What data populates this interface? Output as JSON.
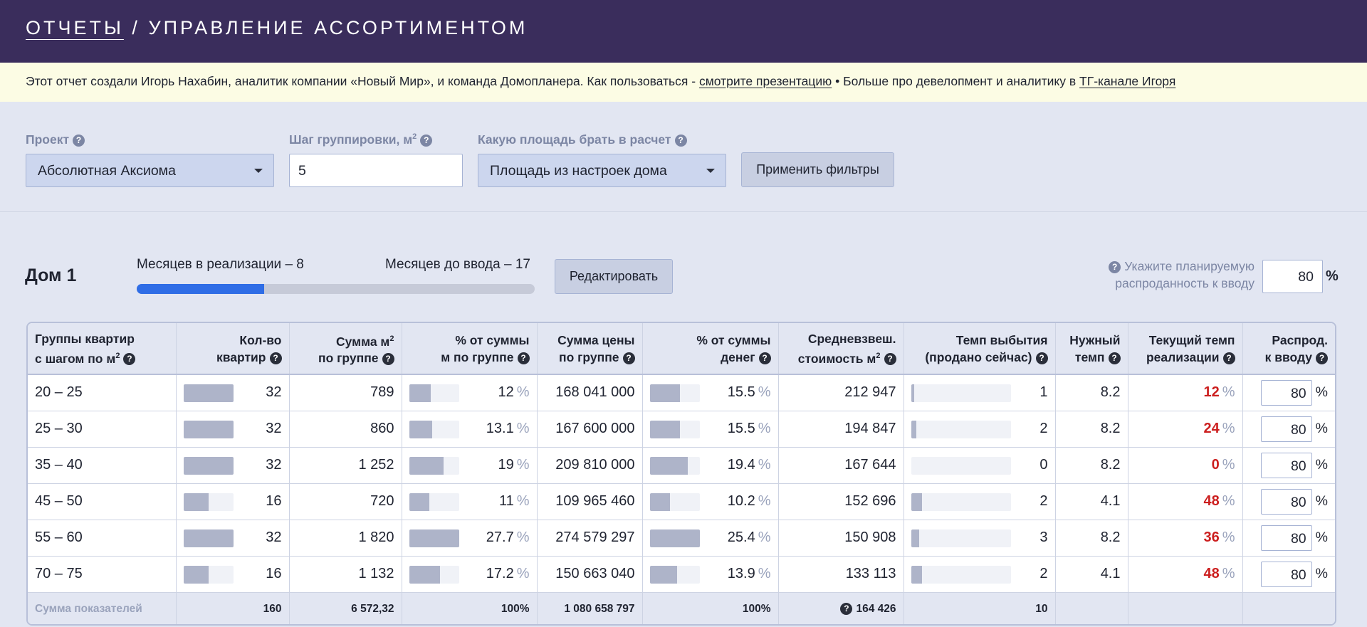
{
  "header": {
    "crumb": "ОТЧЕТЫ",
    "separator": "/",
    "title": "УПРАВЛЕНИЕ АССОРТИМЕНТОМ"
  },
  "notice": {
    "text1": "Этот отчет создали Игорь Нахабин, аналитик компании «Новый Мир», и команда Домопланера. Как пользоваться -",
    "link1": "смотрите презентацию",
    "text2": "• Больше про девелопмент и аналитику в",
    "link2": "ТГ-канале Игоря"
  },
  "filters": {
    "project_label": "Проект",
    "project_value": "Абсолютная Аксиома",
    "step_label": "Шаг группировки, м",
    "step_value": "5",
    "area_label": "Какую площадь брать в расчет",
    "area_value": "Площадь из настроек дома",
    "apply_label": "Применить фильтры"
  },
  "house": {
    "name": "Дом 1",
    "months_sale": "Месяцев в реализации – 8",
    "months_to_launch": "Месяцев до ввода – 17",
    "sale_progress": 0.32,
    "edit_label": "Редактировать",
    "plan_line1": "Укажите планируемую",
    "plan_line2": "распроданность к вводу",
    "plan_value": "80",
    "plan_unit": "%"
  },
  "table": {
    "headers": [
      {
        "l1": "Группы квартир",
        "l2": "с шагом по м"
      },
      {
        "l1": "Кол-во",
        "l2": "квартир"
      },
      {
        "l1": "Сумма м",
        "l2": "по группе"
      },
      {
        "l1": "% от суммы",
        "l2": "м по группе"
      },
      {
        "l1": "Сумма цены",
        "l2": "по группе"
      },
      {
        "l1": "% от суммы",
        "l2": "денег"
      },
      {
        "l1": "Средневзвеш.",
        "l2": "стоимость м"
      },
      {
        "l1": "Темп выбытия",
        "l2": "(продано сейчас)"
      },
      {
        "l1": "Нужный",
        "l2": "темп"
      },
      {
        "l1": "Текущий темп",
        "l2": "реализации"
      },
      {
        "l1": "Распрод.",
        "l2": "к вводу"
      }
    ],
    "pct_sign": "%",
    "rows": [
      {
        "group": "20 – 25",
        "count": "32",
        "count_fill": 1.0,
        "area": "789",
        "area_pct": "12",
        "area_fill": 0.43,
        "price": "168 041 000",
        "price_pct": "15.5",
        "price_fill": 0.61,
        "avg": "212 947",
        "rate": "1",
        "rate_fill": 0.03,
        "need": "8.2",
        "cur": "12",
        "sell": "80"
      },
      {
        "group": "25 – 30",
        "count": "32",
        "count_fill": 1.0,
        "area": "860",
        "area_pct": "13.1",
        "area_fill": 0.47,
        "price": "167 600 000",
        "price_pct": "15.5",
        "price_fill": 0.61,
        "avg": "194 847",
        "rate": "2",
        "rate_fill": 0.05,
        "need": "8.2",
        "cur": "24",
        "sell": "80"
      },
      {
        "group": "35 – 40",
        "count": "32",
        "count_fill": 1.0,
        "area": "1 252",
        "area_pct": "19",
        "area_fill": 0.69,
        "price": "209 810 000",
        "price_pct": "19.4",
        "price_fill": 0.76,
        "avg": "167 644",
        "rate": "0",
        "rate_fill": 0.0,
        "need": "8.2",
        "cur": "0",
        "sell": "80"
      },
      {
        "group": "45 – 50",
        "count": "16",
        "count_fill": 0.5,
        "area": "720",
        "area_pct": "11",
        "area_fill": 0.4,
        "price": "109 965 460",
        "price_pct": "10.2",
        "price_fill": 0.4,
        "avg": "152 696",
        "rate": "2",
        "rate_fill": 0.11,
        "need": "4.1",
        "cur": "48",
        "sell": "80"
      },
      {
        "group": "55 – 60",
        "count": "32",
        "count_fill": 1.0,
        "area": "1 820",
        "area_pct": "27.7",
        "area_fill": 1.0,
        "price": "274 579 297",
        "price_pct": "25.4",
        "price_fill": 1.0,
        "avg": "150 908",
        "rate": "3",
        "rate_fill": 0.08,
        "need": "8.2",
        "cur": "36",
        "sell": "80"
      },
      {
        "group": "70 – 75",
        "count": "16",
        "count_fill": 0.5,
        "area": "1 132",
        "area_pct": "17.2",
        "area_fill": 0.62,
        "price": "150 663 040",
        "price_pct": "13.9",
        "price_fill": 0.55,
        "avg": "133 113",
        "rate": "2",
        "rate_fill": 0.11,
        "need": "4.1",
        "cur": "48",
        "sell": "80"
      }
    ],
    "totals": {
      "label": "Сумма показателей",
      "count": "160",
      "area": "6 572,32",
      "area_pct": "100%",
      "price": "1 080 658 797",
      "price_pct": "100%",
      "avg": "164 426",
      "rate": "10"
    }
  },
  "colors": {
    "header_bg": "#3a2d5c",
    "notice_bg": "#fcfce4",
    "progress": "#2f6de6",
    "bar_fill": "#aeb4c9",
    "red": "#cc1f1f"
  }
}
